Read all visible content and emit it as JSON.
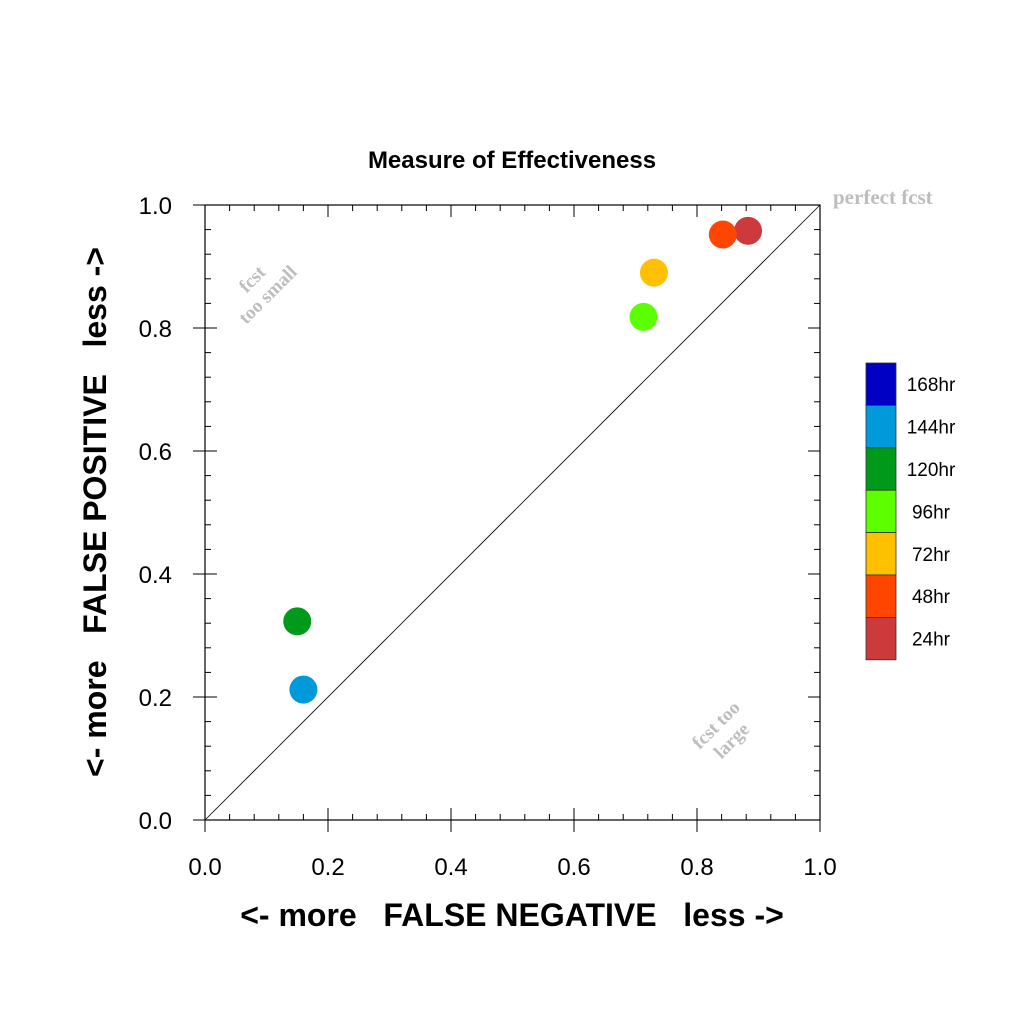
{
  "chart_data": {
    "type": "scatter",
    "title": "Measure of Effectiveness",
    "xlabel": "<- more   FALSE NEGATIVE   less ->",
    "ylabel": "<- more   FALSE POSITIVE   less ->",
    "xlim": [
      0.0,
      1.0
    ],
    "ylim": [
      0.0,
      1.0
    ],
    "x_ticks": [
      "0.0",
      "0.2",
      "0.4",
      "0.6",
      "0.8",
      "1.0"
    ],
    "y_ticks": [
      "0.0",
      "0.2",
      "0.4",
      "0.6",
      "0.8",
      "1.0"
    ],
    "grid": false,
    "diagonal_line": true,
    "annotations": {
      "perfect": "perfect fcst",
      "too_small_1": "fcst",
      "too_small_2": "too small",
      "too_large_1": "fcst too",
      "too_large_2": "large"
    },
    "annotation_color": "#bdbdbd",
    "legend_placement": "right",
    "series": [
      {
        "name": "24hr",
        "color": "#cc3a3c",
        "x": 0.883,
        "y": 0.958
      },
      {
        "name": "48hr",
        "color": "#ff4500",
        "x": 0.842,
        "y": 0.952
      },
      {
        "name": "72hr",
        "color": "#ffc000",
        "x": 0.73,
        "y": 0.89
      },
      {
        "name": "96hr",
        "color": "#5cff00",
        "x": 0.713,
        "y": 0.818
      },
      {
        "name": "120hr",
        "color": "#009a1a",
        "x": 0.15,
        "y": 0.323
      },
      {
        "name": "144hr",
        "color": "#0099d9",
        "x": 0.16,
        "y": 0.212
      }
    ],
    "legend": [
      {
        "label": "168hr",
        "color": "#0000c4"
      },
      {
        "label": "144hr",
        "color": "#0099d9"
      },
      {
        "label": "120hr",
        "color": "#009a1a"
      },
      {
        "label": "96hr",
        "color": "#5cff00"
      },
      {
        "label": "72hr",
        "color": "#ffc000"
      },
      {
        "label": "48hr",
        "color": "#ff4500"
      },
      {
        "label": "24hr",
        "color": "#cc3a3c"
      }
    ]
  }
}
